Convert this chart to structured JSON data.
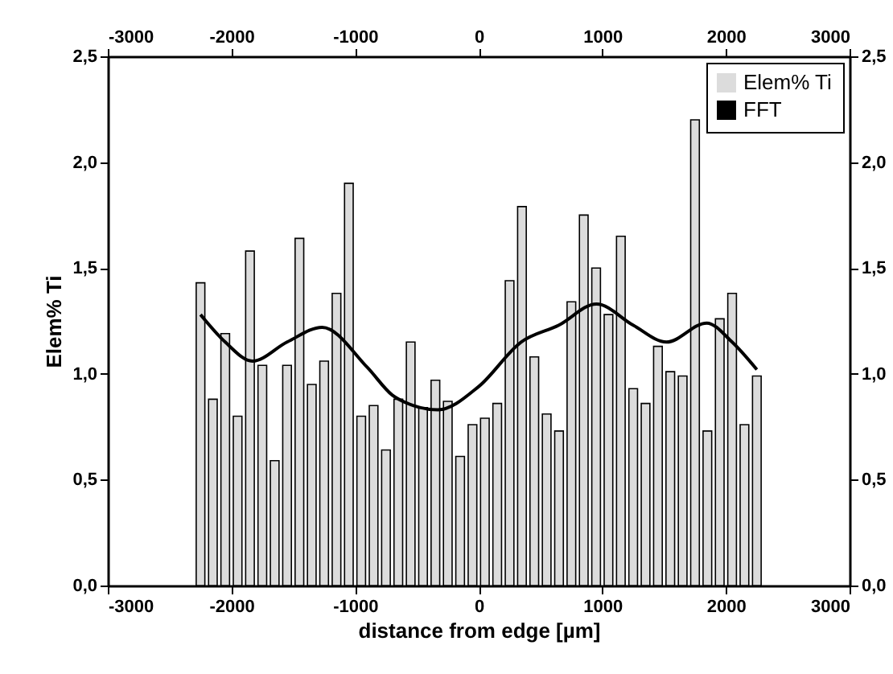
{
  "chart_data": {
    "type": "bar",
    "xlabel": "distance from edge [µm]",
    "ylabel": "Elem% Ti",
    "xlim": [
      -3000,
      3000
    ],
    "xticks": [
      -3000,
      -2000,
      -1000,
      0,
      1000,
      2000,
      3000
    ],
    "x2lim": [
      -3000,
      3000
    ],
    "x2ticks": [
      -3000,
      -2000,
      -1000,
      0,
      1000,
      2000,
      3000
    ],
    "ylim": [
      0,
      2.5
    ],
    "yticks": [
      {
        "value": 0,
        "label": "0,0"
      },
      {
        "value": 0.5,
        "label": "0,5"
      },
      {
        "value": 1,
        "label": "1,0"
      },
      {
        "value": 1.5,
        "label": "1,5"
      },
      {
        "value": 2,
        "label": "2,0"
      },
      {
        "value": 2.5,
        "label": "2,5"
      }
    ],
    "y2lim": [
      0,
      2.5
    ],
    "y2ticks": [
      {
        "value": 0,
        "label": "0,0"
      },
      {
        "value": 0.5,
        "label": "0,5"
      },
      {
        "value": 1,
        "label": "1,0"
      },
      {
        "value": 1.5,
        "label": "1,5"
      },
      {
        "value": 2,
        "label": "2,0"
      },
      {
        "value": 2.5,
        "label": "2,5"
      }
    ],
    "legend": "top right",
    "series": [
      {
        "name": "Elem% Ti",
        "color": "#dcdcdc",
        "x": [
          -2250,
          -2150,
          -2050,
          -1950,
          -1850,
          -1750,
          -1650,
          -1550,
          -1450,
          -1350,
          -1250,
          -1150,
          -1050,
          -950,
          -850,
          -750,
          -650,
          -550,
          -450,
          -350,
          -250,
          -150,
          -50,
          50,
          150,
          250,
          350,
          450,
          550,
          650,
          750,
          850,
          950,
          1050,
          1150,
          1250,
          1350,
          1450,
          1550,
          1650,
          1750,
          1850,
          1950,
          2050,
          2150,
          2250
        ],
        "values": [
          1.43,
          0.88,
          1.19,
          0.8,
          1.58,
          1.04,
          0.59,
          1.04,
          1.64,
          0.95,
          1.06,
          1.38,
          1.9,
          0.8,
          0.85,
          0.64,
          0.88,
          1.15,
          0.84,
          0.97,
          0.87,
          0.61,
          0.76,
          0.79,
          0.86,
          1.44,
          1.79,
          1.08,
          0.81,
          0.73,
          1.34,
          1.75,
          1.5,
          1.28,
          1.65,
          0.93,
          0.86,
          1.13,
          1.01,
          0.99,
          2.2,
          0.73,
          1.26,
          1.38,
          0.76,
          0.99
        ]
      },
      {
        "name": "FFT",
        "type": "line",
        "color": "#000000",
        "x": [
          -2250,
          -2050,
          -1830,
          -1550,
          -1266,
          -900,
          -700,
          -526,
          -330,
          0,
          343,
          649,
          953,
          1249,
          1519,
          1845,
          2050,
          2250
        ],
        "values": [
          1.28,
          1.15,
          1.06,
          1.15,
          1.22,
          1.03,
          0.9,
          0.85,
          0.83,
          0.94,
          1.15,
          1.23,
          1.33,
          1.23,
          1.15,
          1.24,
          1.15,
          1.02
        ]
      }
    ]
  }
}
